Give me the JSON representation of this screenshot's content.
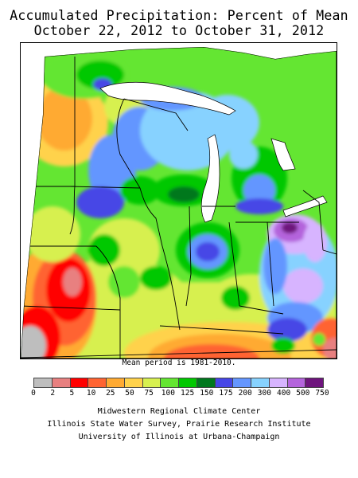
{
  "title": {
    "line1": "Accumulated Precipitation: Percent of Mean",
    "line2": "October 22, 2012 to October 31, 2012"
  },
  "mean_period_note": "Mean period is 1981-2010.",
  "legend": {
    "breaks": [
      "0",
      "2",
      "5",
      "10",
      "25",
      "50",
      "75",
      "100",
      "125",
      "150",
      "175",
      "200",
      "300",
      "400",
      "500",
      "750"
    ],
    "colors": [
      "#bebebe",
      "#e88080",
      "#ff0000",
      "#ff6432",
      "#ffaa32",
      "#ffd24b",
      "#d7f050",
      "#64e632",
      "#00c800",
      "#00781e",
      "#4646e6",
      "#6496ff",
      "#87d2ff",
      "#d7b4ff",
      "#b464dc",
      "#6e147d"
    ]
  },
  "credits": {
    "line1": "Midwestern Regional Climate Center",
    "line2": "Illinois State Water Survey, Prairie Research Institute",
    "line3": "University of Illinois at Urbana-Champaign"
  }
}
